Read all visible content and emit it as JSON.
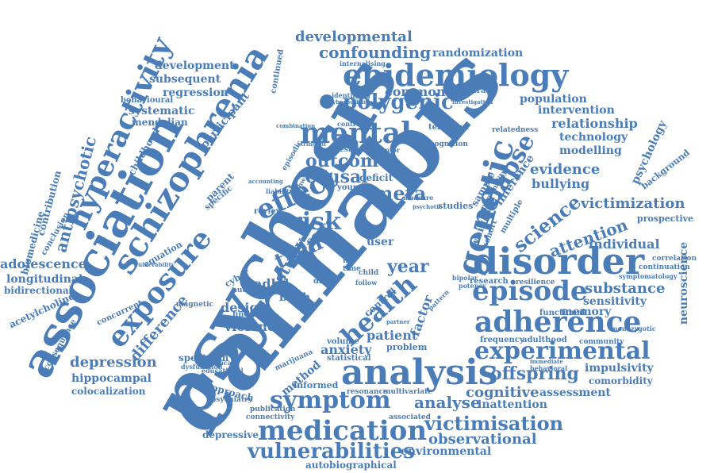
{
  "color": "#4a7db7",
  "words": [
    "cannabis",
    "psychosis",
    "association",
    "schizophrenia",
    "hyperactivity",
    "disorder",
    "epidemiology",
    "analysis",
    "genetic",
    "medication",
    "adherence",
    "episode",
    "mental",
    "exposure",
    "effect",
    "vulnerabilities",
    "experimental",
    "symptom",
    "health",
    "relapse",
    "science",
    "risk",
    "polygenic",
    "antipsychotic",
    "twin",
    "outcome",
    "causal",
    "meta",
    "victimization",
    "victimisation",
    "confounding",
    "developmental",
    "randomization",
    "development",
    "subsequent",
    "regression",
    "systematic",
    "mendelian",
    "behavioural",
    "childhood",
    "participant",
    "hippocampal",
    "depression",
    "difference",
    "adolescence",
    "longitudinal",
    "bidirectional",
    "acetylcholine",
    "biomedicine",
    "contribution",
    "conclusion",
    "equation",
    "concurrent",
    "consequence",
    "colocalization",
    "spectrum",
    "approach",
    "depressive",
    "psychiatry",
    "violence",
    "design",
    "adhd",
    "birth",
    "study",
    "year",
    "patient",
    "factor",
    "anxiety",
    "method",
    "analyse",
    "observational",
    "environmental",
    "autobiographical",
    "offspring",
    "cognitive",
    "inattention",
    "assessment",
    "comorbidity",
    "impulsivity",
    "substance",
    "sensitivity",
    "memory",
    "attention",
    "individual",
    "neuroscience",
    "evidence",
    "bullying",
    "modelling",
    "technology",
    "relationship",
    "intervention",
    "population",
    "psychology",
    "prospective",
    "background",
    "common",
    "structural",
    "weight",
    "sample",
    "inference",
    "continued",
    "score",
    "young",
    "deficit",
    "parent",
    "finding",
    "user",
    "control",
    "problem",
    "volume",
    "informed",
    "marijuana",
    "statistical",
    "publication",
    "connectivity",
    "magnetic",
    "dysfunction",
    "significant",
    "educational",
    "resonance",
    "multivariate",
    "associated",
    "correlation",
    "continuation",
    "symptomatology",
    "community",
    "frequency",
    "adulthood",
    "resilience",
    "functional",
    "research",
    "temporal",
    "relatedness",
    "cognition",
    "personality",
    "specific",
    "episodic",
    "review",
    "cyber",
    "autism",
    "life",
    "time",
    "child",
    "data",
    "follow",
    "internalising",
    "identifying",
    "investigation",
    "controlling",
    "estimate",
    "receptor",
    "pathway",
    "potency",
    "bipolar",
    "psychotic",
    "vulnerability",
    "behavioral",
    "monozygotic",
    "cohort",
    "multiple",
    "studies",
    "pattern",
    "partner",
    "immediate",
    "liability",
    "accounting",
    "cyberbullying",
    "combination",
    "stringent",
    "measure"
  ]
}
